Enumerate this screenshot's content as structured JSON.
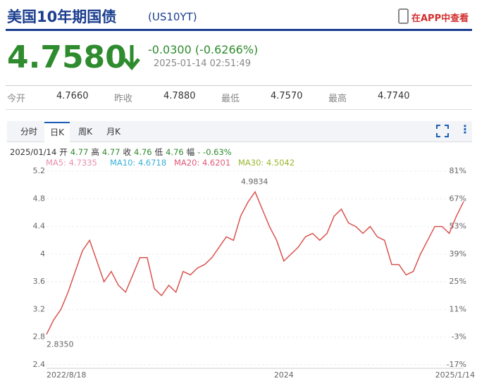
{
  "header": {
    "title": "美国10年期国债",
    "code": "(US10YT)",
    "app_link": "在APP中查看"
  },
  "quote": {
    "price": "4.7580",
    "change": "-0.0300 (-0.6266%)",
    "time": "2025-01-14 02:51:49"
  },
  "stats": [
    {
      "label": "今开",
      "value": "4.7660"
    },
    {
      "label": "昨收",
      "value": "4.7880"
    },
    {
      "label": "最低",
      "value": "4.7570"
    },
    {
      "label": "最高",
      "value": "4.7740"
    }
  ],
  "tabs": [
    "分时",
    "日K",
    "周K",
    "月K"
  ],
  "active_tab": 1,
  "info": {
    "date": "2025/01/14",
    "items": [
      [
        "开",
        "4.77"
      ],
      [
        "高",
        "4.77"
      ],
      [
        "收",
        "4.76"
      ],
      [
        "低",
        "4.76"
      ],
      [
        "幅",
        "- -0.63%"
      ]
    ]
  },
  "ma_legend": [
    {
      "text": "MA5: 4.7335",
      "color": "#e88fb0"
    },
    {
      "text": "MA10: 4.6718",
      "color": "#3ab0d8"
    },
    {
      "text": "MA20: 4.6201",
      "color": "#e05a7a"
    },
    {
      "text": "MA30: 4.5042",
      "color": "#9ab830"
    }
  ],
  "chart_data": {
    "type": "line",
    "categories": [
      "2022/8/18",
      null,
      null,
      null,
      null,
      null,
      null,
      null,
      null,
      null,
      null,
      null,
      null,
      null,
      null,
      null,
      null,
      null,
      null,
      null,
      null,
      null,
      null,
      null,
      null,
      null,
      null,
      null,
      null,
      null,
      null,
      null,
      null,
      "2024",
      null,
      null,
      null,
      null,
      null,
      null,
      null,
      null,
      null,
      null,
      null,
      null,
      null,
      null,
      null,
      null,
      null,
      null,
      null,
      null,
      null,
      null,
      null,
      null,
      "2025/1/14"
    ],
    "series": [
      {
        "color": "#d9534f",
        "values": [
          2.84,
          3.05,
          3.2,
          3.45,
          3.75,
          4.05,
          4.2,
          3.9,
          3.6,
          3.75,
          3.55,
          3.45,
          3.7,
          3.95,
          3.95,
          3.5,
          3.4,
          3.55,
          3.45,
          3.75,
          3.7,
          3.8,
          3.85,
          3.95,
          4.1,
          4.25,
          4.2,
          4.55,
          4.75,
          4.9,
          4.65,
          4.4,
          4.2,
          3.9,
          4.0,
          4.1,
          4.25,
          4.3,
          4.2,
          4.3,
          4.55,
          4.65,
          4.45,
          4.4,
          4.3,
          4.4,
          4.25,
          4.2,
          3.85,
          3.85,
          3.7,
          3.75,
          4.0,
          4.2,
          4.4,
          4.4,
          4.3,
          4.55,
          4.76
        ]
      }
    ],
    "high": 4.9834,
    "low": {
      "value": 2.835,
      "label": "2.8350"
    },
    "ylim": [
      2.4,
      5.2
    ],
    "yticks": [
      2.4,
      2.8,
      3.2,
      3.6,
      4,
      4.4,
      4.8,
      5.2
    ],
    "y2lim": [
      -17,
      81
    ],
    "y2ticks": [
      {
        "value": -17,
        "label": "-17%"
      },
      {
        "value": -3,
        "label": "-3%"
      },
      {
        "value": 11,
        "label": "11%"
      },
      {
        "value": 25,
        "label": "25%"
      },
      {
        "value": 39,
        "label": "39%"
      },
      {
        "value": 53,
        "label": "53%"
      },
      {
        "value": 67,
        "label": "67%"
      },
      {
        "value": 81,
        "label": "81%"
      }
    ],
    "grid": true
  }
}
